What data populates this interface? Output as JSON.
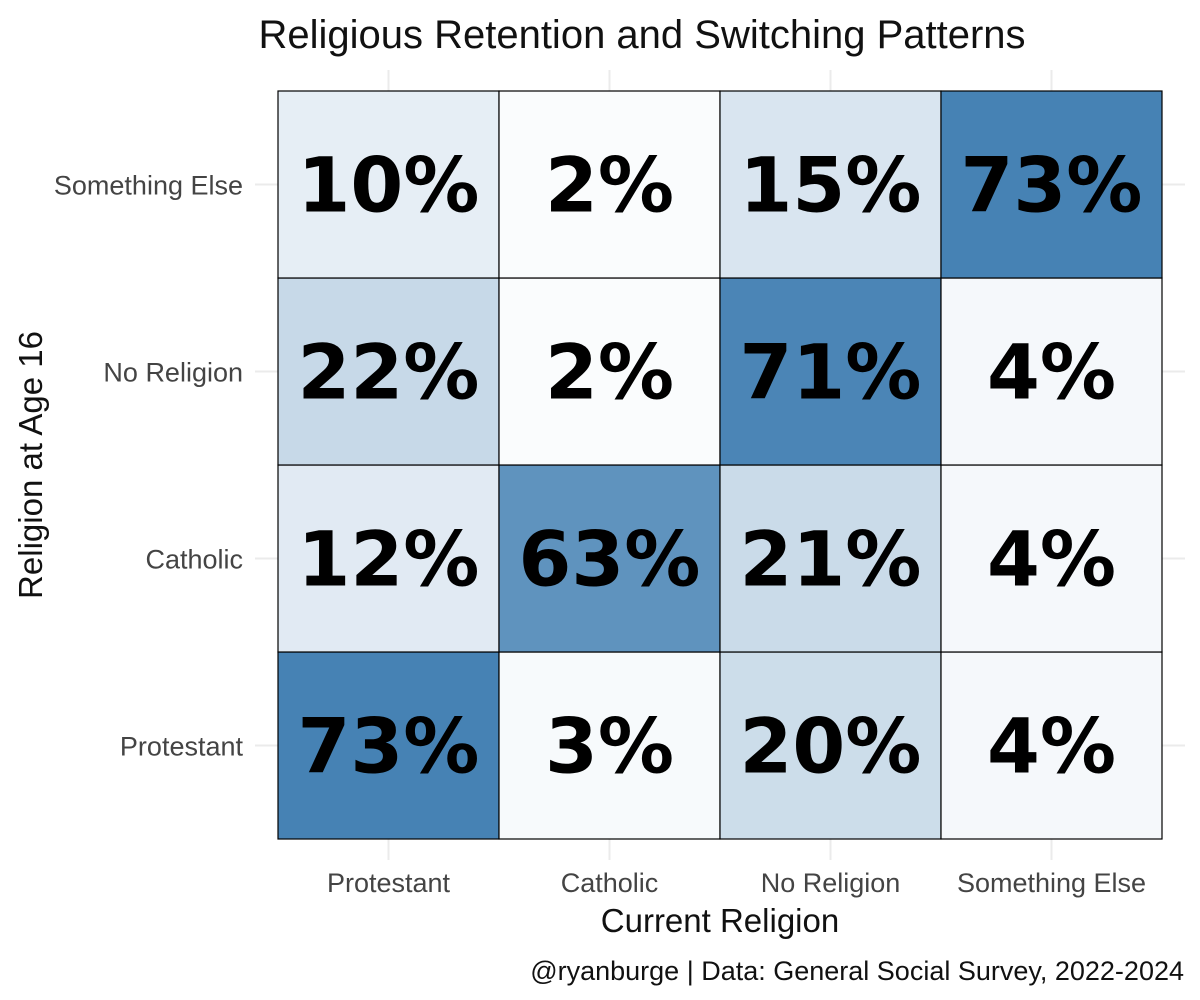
{
  "chart_data": {
    "type": "heatmap",
    "title": "Religious Retention and Switching Patterns",
    "xlabel": "Current Religion",
    "ylabel": "Religion at Age 16",
    "x_categories": [
      "Protestant",
      "Catholic",
      "No Religion",
      "Something Else"
    ],
    "y_categories": [
      "Protestant",
      "Catholic",
      "No Religion",
      "Something Else"
    ],
    "values": [
      [
        73,
        3,
        20,
        4
      ],
      [
        12,
        63,
        21,
        4
      ],
      [
        22,
        2,
        71,
        4
      ],
      [
        10,
        2,
        15,
        73
      ]
    ],
    "value_suffix": "%",
    "caption": "@ryanburge | Data: General Social Survey, 2022-2024",
    "color_low": "#ffffff",
    "color_high": "#4682b4",
    "value_range": [
      0,
      73
    ],
    "grid": true,
    "legend": "none"
  }
}
